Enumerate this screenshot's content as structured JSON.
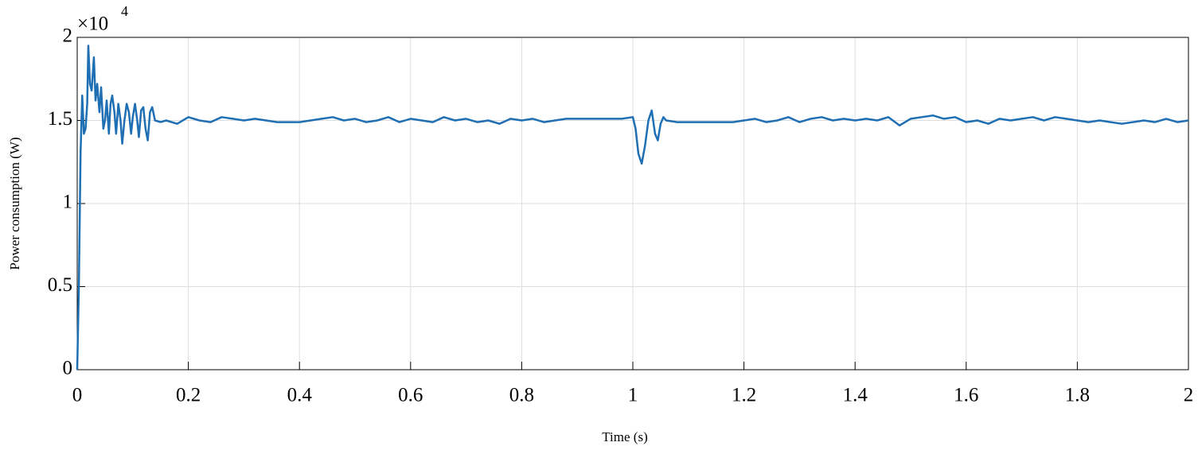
{
  "chart_data": {
    "type": "line",
    "xlabel": "Time (s)",
    "ylabel": "Power consumption (W)",
    "y_multiplier": "×10",
    "y_multiplier_exponent": "4",
    "color": "#1f6fb4",
    "grid": true,
    "xlim": [
      0,
      2
    ],
    "ylim": [
      0,
      2
    ],
    "xticks": [
      0,
      0.2,
      0.4,
      0.6,
      0.8,
      1,
      1.2,
      1.4,
      1.6,
      1.8,
      2
    ],
    "yticks": [
      0,
      0.5,
      1,
      1.5,
      2
    ],
    "x": [
      0,
      0.003,
      0.006,
      0.009,
      0.012,
      0.015,
      0.018,
      0.02,
      0.023,
      0.026,
      0.03,
      0.033,
      0.036,
      0.04,
      0.043,
      0.047,
      0.05,
      0.053,
      0.057,
      0.06,
      0.063,
      0.067,
      0.07,
      0.074,
      0.078,
      0.081,
      0.085,
      0.089,
      0.093,
      0.097,
      0.1,
      0.104,
      0.108,
      0.111,
      0.115,
      0.119,
      0.123,
      0.127,
      0.131,
      0.135,
      0.14,
      0.15,
      0.16,
      0.18,
      0.2,
      0.22,
      0.24,
      0.26,
      0.28,
      0.3,
      0.32,
      0.34,
      0.36,
      0.38,
      0.4,
      0.42,
      0.44,
      0.46,
      0.48,
      0.5,
      0.52,
      0.54,
      0.56,
      0.58,
      0.6,
      0.62,
      0.64,
      0.66,
      0.68,
      0.7,
      0.72,
      0.74,
      0.76,
      0.78,
      0.8,
      0.82,
      0.84,
      0.86,
      0.88,
      0.9,
      0.92,
      0.94,
      0.96,
      0.98,
      1.0,
      1.005,
      1.01,
      1.016,
      1.022,
      1.028,
      1.034,
      1.04,
      1.045,
      1.05,
      1.055,
      1.06,
      1.08,
      1.1,
      1.12,
      1.14,
      1.16,
      1.18,
      1.2,
      1.22,
      1.24,
      1.26,
      1.28,
      1.3,
      1.32,
      1.34,
      1.36,
      1.38,
      1.4,
      1.42,
      1.44,
      1.46,
      1.48,
      1.5,
      1.52,
      1.54,
      1.56,
      1.58,
      1.6,
      1.62,
      1.64,
      1.66,
      1.68,
      1.7,
      1.72,
      1.74,
      1.76,
      1.78,
      1.8,
      1.82,
      1.84,
      1.86,
      1.88,
      1.9,
      1.92,
      1.94,
      1.96,
      1.98,
      2.0
    ],
    "values": [
      0,
      0.5,
      1.3,
      1.65,
      1.42,
      1.45,
      1.6,
      1.95,
      1.72,
      1.68,
      1.88,
      1.62,
      1.72,
      1.55,
      1.7,
      1.45,
      1.5,
      1.62,
      1.42,
      1.6,
      1.65,
      1.55,
      1.42,
      1.6,
      1.5,
      1.36,
      1.5,
      1.6,
      1.55,
      1.42,
      1.52,
      1.6,
      1.5,
      1.4,
      1.56,
      1.58,
      1.45,
      1.38,
      1.55,
      1.58,
      1.5,
      1.49,
      1.5,
      1.48,
      1.52,
      1.5,
      1.49,
      1.52,
      1.51,
      1.5,
      1.51,
      1.5,
      1.49,
      1.49,
      1.49,
      1.5,
      1.51,
      1.52,
      1.5,
      1.51,
      1.49,
      1.5,
      1.52,
      1.49,
      1.51,
      1.5,
      1.49,
      1.52,
      1.5,
      1.51,
      1.49,
      1.5,
      1.48,
      1.51,
      1.5,
      1.51,
      1.49,
      1.5,
      1.51,
      1.51,
      1.51,
      1.51,
      1.51,
      1.51,
      1.52,
      1.45,
      1.3,
      1.24,
      1.35,
      1.5,
      1.56,
      1.42,
      1.38,
      1.48,
      1.52,
      1.5,
      1.49,
      1.49,
      1.49,
      1.49,
      1.49,
      1.49,
      1.5,
      1.51,
      1.49,
      1.5,
      1.52,
      1.49,
      1.51,
      1.52,
      1.5,
      1.51,
      1.5,
      1.51,
      1.5,
      1.52,
      1.47,
      1.51,
      1.52,
      1.53,
      1.51,
      1.52,
      1.49,
      1.5,
      1.48,
      1.51,
      1.5,
      1.51,
      1.52,
      1.5,
      1.52,
      1.51,
      1.5,
      1.49,
      1.5,
      1.49,
      1.48,
      1.49,
      1.5,
      1.49,
      1.51,
      1.49,
      1.5
    ]
  }
}
